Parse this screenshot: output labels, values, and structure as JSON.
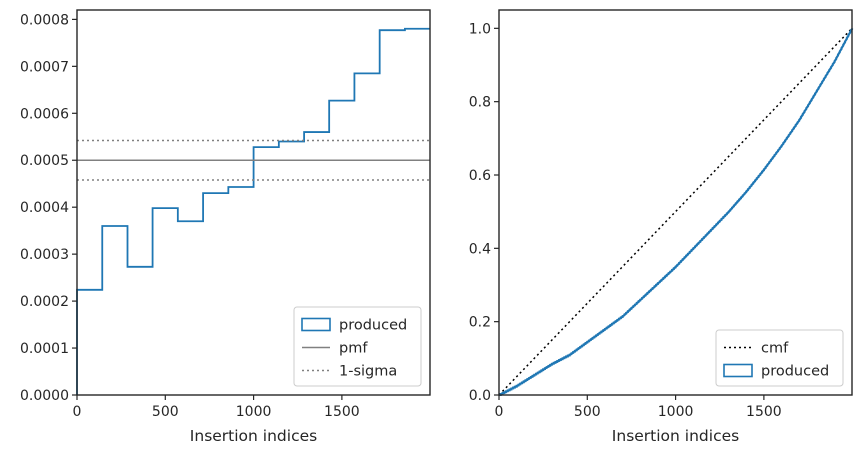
{
  "chart_data": [
    {
      "type": "line",
      "panel": "left",
      "title": "",
      "xlabel": "Insertion indices",
      "ylabel": "",
      "xlim": [
        0,
        1999
      ],
      "ylim": [
        0,
        0.00082
      ],
      "xticks": [
        0,
        500,
        1000,
        1500
      ],
      "xtick_labels": [
        "0",
        "500",
        "1000",
        "1500"
      ],
      "yticks": [
        0,
        0.0001,
        0.0002,
        0.0003,
        0.0004,
        0.0005,
        0.0006,
        0.0007,
        0.0008
      ],
      "ytick_labels": [
        "0.0000",
        "0.0001",
        "0.0002",
        "0.0003",
        "0.0004",
        "0.0005",
        "0.0006",
        "0.0007",
        "0.0008"
      ],
      "grid": false,
      "legend_position": "lower-right",
      "pmf": 0.0005,
      "sigma_band": [
        0.000458,
        0.000542
      ],
      "series": [
        {
          "name": "produced",
          "kind": "step-histogram",
          "color": "#1f77b4",
          "bin_edges": [
            0,
            143,
            286,
            428,
            571,
            714,
            857,
            1000,
            1143,
            1286,
            1428,
            1571,
            1714,
            1857,
            1999
          ],
          "values": [
            0.000224,
            0.00036,
            0.000273,
            0.000398,
            0.00037,
            0.00043,
            0.000443,
            0.000528,
            0.00054,
            0.00056,
            0.000627,
            0.000685,
            0.000777,
            0.00078
          ]
        },
        {
          "name": "pmf",
          "kind": "hline",
          "color": "#808080",
          "y": 0.0005
        },
        {
          "name": "1-sigma",
          "kind": "hlines-dotted",
          "color": "#808080",
          "y": [
            0.000458,
            0.000542
          ]
        }
      ]
    },
    {
      "type": "line",
      "panel": "right",
      "title": "",
      "xlabel": "Insertion indices",
      "ylabel": "",
      "xlim": [
        0,
        1999
      ],
      "ylim": [
        0,
        1.05
      ],
      "xticks": [
        0,
        500,
        1000,
        1500
      ],
      "xtick_labels": [
        "0",
        "500",
        "1000",
        "1500"
      ],
      "yticks": [
        0,
        0.2,
        0.4,
        0.6,
        0.8,
        1.0
      ],
      "ytick_labels": [
        "0.0",
        "0.2",
        "0.4",
        "0.6",
        "0.8",
        "1.0"
      ],
      "grid": false,
      "legend_position": "lower-right",
      "series": [
        {
          "name": "cmf",
          "kind": "dotted-line",
          "color": "#000000",
          "x": [
            0,
            1999
          ],
          "y": [
            0,
            1.0
          ]
        },
        {
          "name": "produced",
          "kind": "line",
          "color": "#1f77b4",
          "x": [
            0,
            100,
            200,
            300,
            400,
            500,
            600,
            700,
            800,
            900,
            1000,
            1100,
            1200,
            1300,
            1400,
            1500,
            1600,
            1700,
            1800,
            1900,
            1999
          ],
          "y": [
            0,
            0.025,
            0.055,
            0.085,
            0.11,
            0.145,
            0.18,
            0.215,
            0.26,
            0.305,
            0.35,
            0.4,
            0.45,
            0.5,
            0.555,
            0.615,
            0.68,
            0.75,
            0.83,
            0.91,
            1.0
          ]
        }
      ]
    }
  ]
}
